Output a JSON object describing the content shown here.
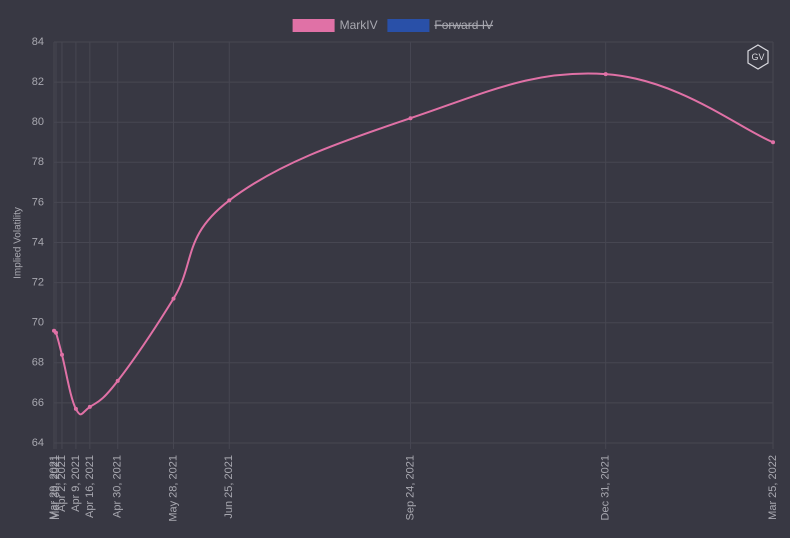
{
  "logo": "GV",
  "chart_data": {
    "type": "line",
    "y_label": "Implied Volatility",
    "x": [
      "2021-03-29",
      "2021-03-30",
      "2021-04-02",
      "2021-04-09",
      "2021-04-16",
      "2021-04-30",
      "2021-05-28",
      "2021-06-25",
      "2021-09-24",
      "2021-12-31",
      "2022-03-25"
    ],
    "xlim": [
      "2021-03-29",
      "2022-03-25"
    ],
    "xticks": [
      {
        "value": "2021-03-29",
        "label": "Mar 29, 2021"
      },
      {
        "value": "2021-03-30",
        "label": "Mar 30, 2021"
      },
      {
        "value": "2021-04-02",
        "label": "Apr 2, 2021"
      },
      {
        "value": "2021-04-09",
        "label": "Apr 9, 2021"
      },
      {
        "value": "2021-04-16",
        "label": "Apr 16, 2021"
      },
      {
        "value": "2021-04-30",
        "label": "Apr 30, 2021"
      },
      {
        "value": "2021-05-28",
        "label": "May 28, 2021"
      },
      {
        "value": "2021-06-25",
        "label": "Jun 25, 2021"
      },
      {
        "value": "2021-09-24",
        "label": "Sep 24, 2021"
      },
      {
        "value": "2021-12-31",
        "label": "Dec 31, 2021"
      },
      {
        "value": "2022-03-25",
        "label": "Mar 25, 2022"
      }
    ],
    "ylim": [
      64,
      84
    ],
    "yticks": [
      64,
      66,
      68,
      70,
      72,
      74,
      76,
      78,
      80,
      82,
      84
    ],
    "grid": true,
    "legend": "top",
    "series": [
      {
        "name": "MarkIV",
        "color": "#e071a6",
        "values": [
          69.6,
          69.5,
          68.4,
          65.7,
          65.8,
          67.1,
          71.2,
          76.1,
          80.2,
          82.4,
          79.0
        ]
      },
      {
        "name": "Forward IV",
        "color": "#2950a8",
        "hidden": true,
        "values": [
          null,
          null,
          null,
          null,
          null,
          null,
          null,
          null,
          null,
          null,
          null
        ]
      }
    ]
  }
}
